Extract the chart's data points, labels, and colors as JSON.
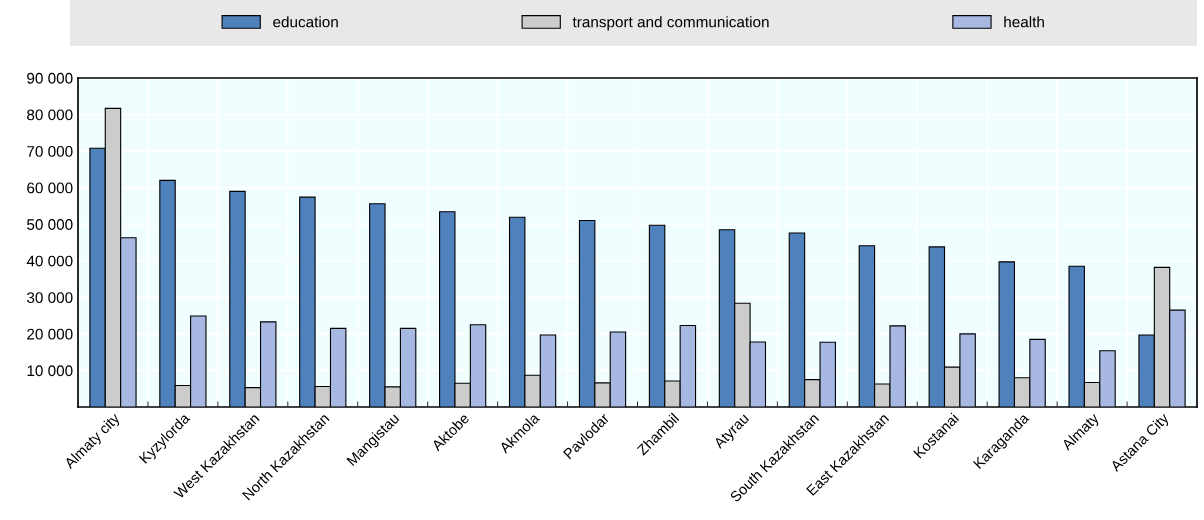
{
  "chart_data": {
    "type": "bar",
    "categories": [
      "Almaty city",
      "Kyzylorda",
      "West Kazakhstan",
      "North Kazakhstan",
      "Mangistau",
      "Aktobe",
      "Akmola",
      "Pavlodar",
      "Zhambil",
      "Atyrau",
      "South Kazakhstan",
      "East Kazakhstan",
      "Kostanai",
      "Karaganda",
      "Almaty",
      "Astana City"
    ],
    "series": [
      {
        "name": "education",
        "color": "#4f81bd",
        "values": [
          70800,
          62000,
          59000,
          57400,
          55600,
          53400,
          51900,
          51000,
          49700,
          48500,
          47600,
          44100,
          43800,
          39700,
          38500,
          19700
        ]
      },
      {
        "name": "transport and communication",
        "color": "#cccccc",
        "values": [
          81700,
          5900,
          5300,
          5600,
          5500,
          6500,
          8700,
          6600,
          7100,
          28400,
          7500,
          6300,
          10900,
          8000,
          6700,
          38200
        ]
      },
      {
        "name": "health",
        "color": "#a7b9e3",
        "values": [
          46300,
          24900,
          23300,
          21500,
          21500,
          22500,
          19700,
          20500,
          22300,
          17800,
          17700,
          22200,
          20000,
          18500,
          15400,
          26500
        ]
      }
    ],
    "ylim": [
      0,
      90000
    ],
    "yticks": [
      {
        "value": 0,
        "label": null
      },
      {
        "value": 10000,
        "label": "10 000"
      },
      {
        "value": 20000,
        "label": "20 000"
      },
      {
        "value": 30000,
        "label": "30 000"
      },
      {
        "value": 40000,
        "label": "40 000"
      },
      {
        "value": 50000,
        "label": "50 000"
      },
      {
        "value": 60000,
        "label": "60 000"
      },
      {
        "value": 70000,
        "label": "70 000"
      },
      {
        "value": 80000,
        "label": "80 000"
      },
      {
        "value": 90000,
        "label": "90 000"
      }
    ],
    "grid": true,
    "legend": "top"
  }
}
